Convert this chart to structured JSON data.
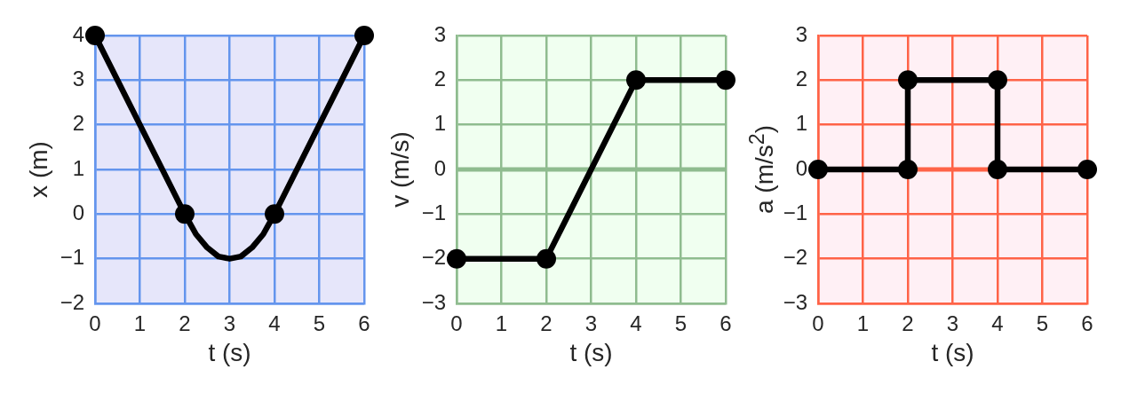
{
  "chart_data": [
    {
      "type": "line",
      "xlabel": "t (s)",
      "ylabel": "x (m)",
      "xlim": [
        0,
        6
      ],
      "xticks": [
        0,
        1,
        2,
        3,
        4,
        5,
        6
      ],
      "ylim": [
        -2,
        4
      ],
      "yticks": [
        {
          "value": -2,
          "label": "−2"
        },
        {
          "value": -1,
          "label": "−1"
        },
        0,
        1,
        2,
        3,
        4
      ],
      "grid": true,
      "series": [
        {
          "color": "#000000",
          "marker": "none",
          "x": [
            0,
            2,
            2.25,
            2.5,
            2.75,
            3,
            3.25,
            3.5,
            3.75,
            4,
            6
          ],
          "values": [
            4,
            0,
            -0.45,
            -0.75,
            -0.95,
            -1,
            -0.95,
            -0.75,
            -0.45,
            0,
            4
          ]
        },
        {
          "type": "scatter",
          "color": "#000000",
          "marker": "circle",
          "x": [
            0,
            2,
            4,
            6
          ],
          "values": [
            4,
            0,
            0,
            4
          ]
        }
      ]
    },
    {
      "type": "line",
      "xlabel": "t (s)",
      "ylabel": "v (m/s)",
      "xlim": [
        0,
        6
      ],
      "xticks": [
        0,
        1,
        2,
        3,
        4,
        5,
        6
      ],
      "ylim": [
        -3,
        3
      ],
      "yticks": [
        {
          "value": -3,
          "label": "−3"
        },
        {
          "value": -2,
          "label": "−2"
        },
        {
          "value": -1,
          "label": "−1"
        },
        0,
        1,
        2,
        3
      ],
      "grid": true,
      "marker": "circle",
      "series": [
        {
          "color": "#000000",
          "x": [
            0,
            2,
            4,
            6
          ],
          "values": [
            -2,
            -2,
            2,
            2
          ]
        }
      ],
      "ref_lines": [
        {
          "axis": "y",
          "value": 0,
          "color": "#8fbc8f"
        }
      ]
    },
    {
      "type": "line",
      "xlabel": "t (s)",
      "ylabel": "a (m/s$^{2}$)",
      "xlim": [
        0,
        6
      ],
      "xticks": [
        0,
        1,
        2,
        3,
        4,
        5,
        6
      ],
      "ylim": [
        -3,
        3
      ],
      "yticks": [
        {
          "value": -3,
          "label": "−3"
        },
        {
          "value": -2,
          "label": "−2"
        },
        {
          "value": -1,
          "label": "−1"
        },
        0,
        1,
        2,
        3
      ],
      "grid": true,
      "marker": "circle",
      "series": [
        {
          "color": "#000000",
          "x": [
            0,
            2,
            2,
            4,
            4,
            6
          ],
          "values": [
            0,
            0,
            2,
            2,
            0,
            0
          ]
        }
      ],
      "ref_lines": [
        {
          "axis": "y",
          "value": 0,
          "color": "#ff6347"
        }
      ]
    }
  ]
}
